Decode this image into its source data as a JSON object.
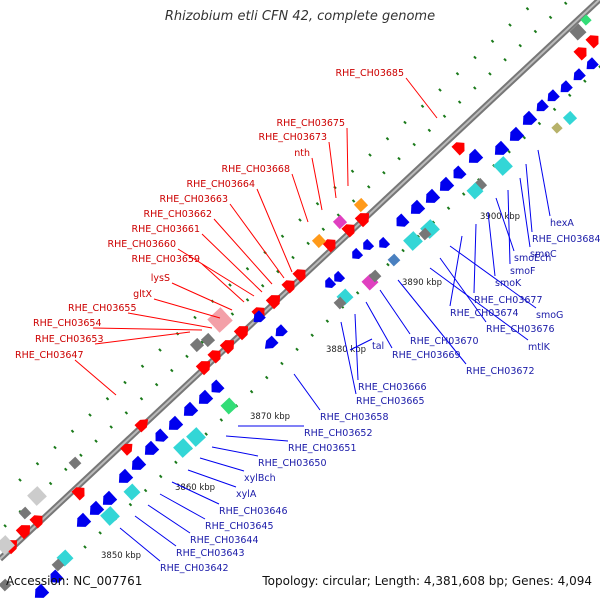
{
  "title": "Rhizobium etli CFN 42, complete genome",
  "footer": {
    "accession": "Accession: NC_007761",
    "summary": "Topology: circular; Length: 4,381,608 bp; Genes: 4,094"
  },
  "colors": {
    "forward": "#ff0000",
    "reverse": "#0000ee",
    "forward_label": "#cc0000",
    "reverse_label": "#1a1aa8",
    "backbone": "#777777",
    "tick": "#1a7a1a",
    "pink": "#f3a0a8",
    "cyan": "#33d6d6",
    "magenta": "#e040c0",
    "orange": "#ff9a1a",
    "gray": "#777777",
    "green": "#33dd77",
    "steelblue": "#4a80c0",
    "khaki": "#b7b26a"
  },
  "scale_labels": [
    "3850 kbp",
    "3860 kbp",
    "3870 kbp",
    "3880 kbp",
    "3890 kbp",
    "3900 kbp"
  ],
  "forward_genes": [
    "RHE_CH03647",
    "RHE_CH03653",
    "RHE_CH03654",
    "RHE_CH03655",
    "gltX",
    "lysS",
    "RHE_CH03659",
    "RHE_CH03660",
    "RHE_CH03661",
    "RHE_CH03662",
    "RHE_CH03663",
    "RHE_CH03664",
    "RHE_CH03668",
    "nth",
    "RHE_CH03673",
    "RHE_CH03675",
    "RHE_CH03685"
  ],
  "reverse_genes": [
    "RHE_CH03642",
    "RHE_CH03643",
    "RHE_CH03644",
    "RHE_CH03645",
    "RHE_CH03646",
    "xylA",
    "xylBch",
    "RHE_CH03650",
    "RHE_CH03651",
    "RHE_CH03652",
    "RHE_CH03658",
    "tal",
    "RHE_CH03665",
    "RHE_CH03666",
    "RHE_CH03669",
    "RHE_CH03670",
    "RHE_CH03672",
    "mtlK",
    "RHE_CH03676",
    "smoG",
    "RHE_CH03674",
    "RHE_CH03677",
    "smoK",
    "smoEch",
    "smoF",
    "smoC",
    "RHE_CH03684",
    "hexA"
  ]
}
